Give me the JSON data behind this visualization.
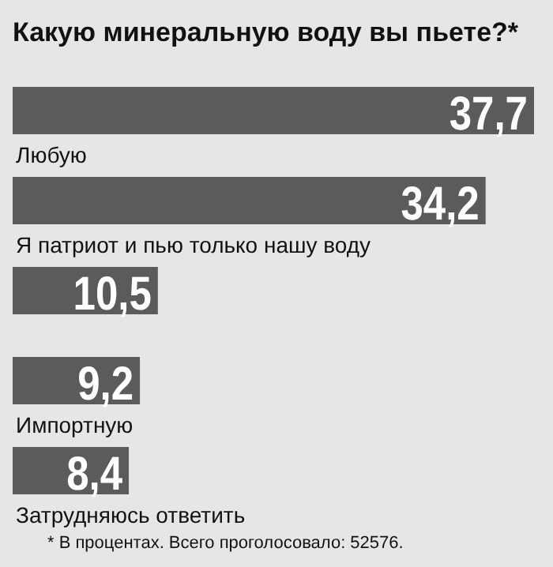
{
  "chart_data": {
    "type": "bar",
    "orientation": "horizontal",
    "title": "Какую минеральную воду вы пьете?*",
    "categories": [
      "Любую",
      "Я патриот и пью только нашу воду",
      null,
      "Импортную",
      "Затрудняюсь ответить"
    ],
    "values": [
      37.7,
      34.2,
      10.5,
      9.2,
      8.4
    ],
    "color": "#5b5b5b",
    "value_labels": [
      "37,7",
      "34,2",
      "10,5",
      "9,2",
      "8,4"
    ],
    "annotations": [
      "* В процентах. Всего проголосовало: 52576."
    ]
  }
}
